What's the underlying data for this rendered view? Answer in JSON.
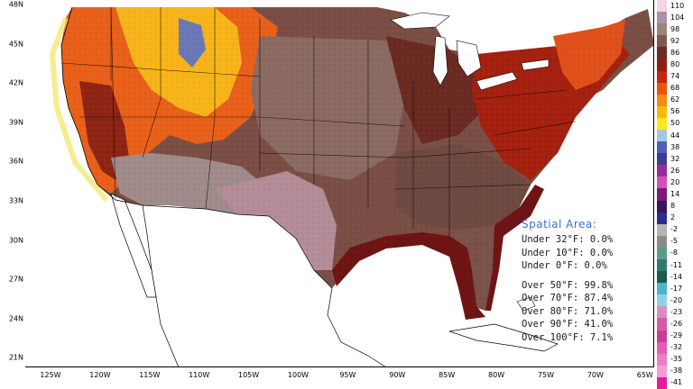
{
  "map": {
    "latitude_labels": [
      "48N",
      "45N",
      "42N",
      "39N",
      "36N",
      "33N",
      "30N",
      "27N",
      "24N",
      "21N"
    ],
    "longitude_labels": [
      "125W",
      "120W",
      "115W",
      "110W",
      "105W",
      "100W",
      "95W",
      "90W",
      "85W",
      "80W",
      "75W",
      "70W",
      "65W"
    ],
    "colors": {
      "ocean": "#ffffff",
      "outline": "#000000",
      "coast_shade": "#6e1414"
    }
  },
  "colorbar": {
    "labels": [
      "110",
      "104",
      "98",
      "92",
      "86",
      "80",
      "74",
      "68",
      "62",
      "56",
      "50",
      "44",
      "38",
      "32",
      "26",
      "20",
      "14",
      "8",
      "2",
      "-2",
      "-5",
      "-8",
      "-11",
      "-14",
      "-17",
      "-20",
      "-23",
      "-26",
      "-29",
      "-32",
      "-35",
      "-38",
      "-41"
    ],
    "colors": [
      "#f5d3e3",
      "#a894a6",
      "#9c8478",
      "#7e5a4c",
      "#6a2b22",
      "#8e1e12",
      "#c4260f",
      "#e6560c",
      "#f58a0c",
      "#f8b80c",
      "#ffe81a",
      "#a0c8e0",
      "#5060b8",
      "#3c3c94",
      "#9a2a9a",
      "#d24fb4",
      "#7c1a7c",
      "#3a145c",
      "#2c2c8c",
      "#b4b4b4",
      "#8c8c8c",
      "#5c9c8c",
      "#2c7c6c",
      "#1c5c4c",
      "#4cb4cc",
      "#8cd4e4",
      "#dc8cc4",
      "#d45ca4",
      "#cc3c94",
      "#e45cb4",
      "#ec7cc4",
      "#f49cd4",
      "#e41c9c"
    ]
  },
  "stats": {
    "title": "Spatial Area:",
    "under32": "Under 32°F: 0.0%",
    "under10": "Under 10°F: 0.0%",
    "under0": "Under 0°F: 0.0%",
    "over50": "Over 50°F: 99.8%",
    "over70": "Over 70°F: 87.4%",
    "over80": "Over 80°F: 71.0%",
    "over90": "Over 90°F: 41.0%",
    "over100": "Over 100°F: 7.1%"
  }
}
